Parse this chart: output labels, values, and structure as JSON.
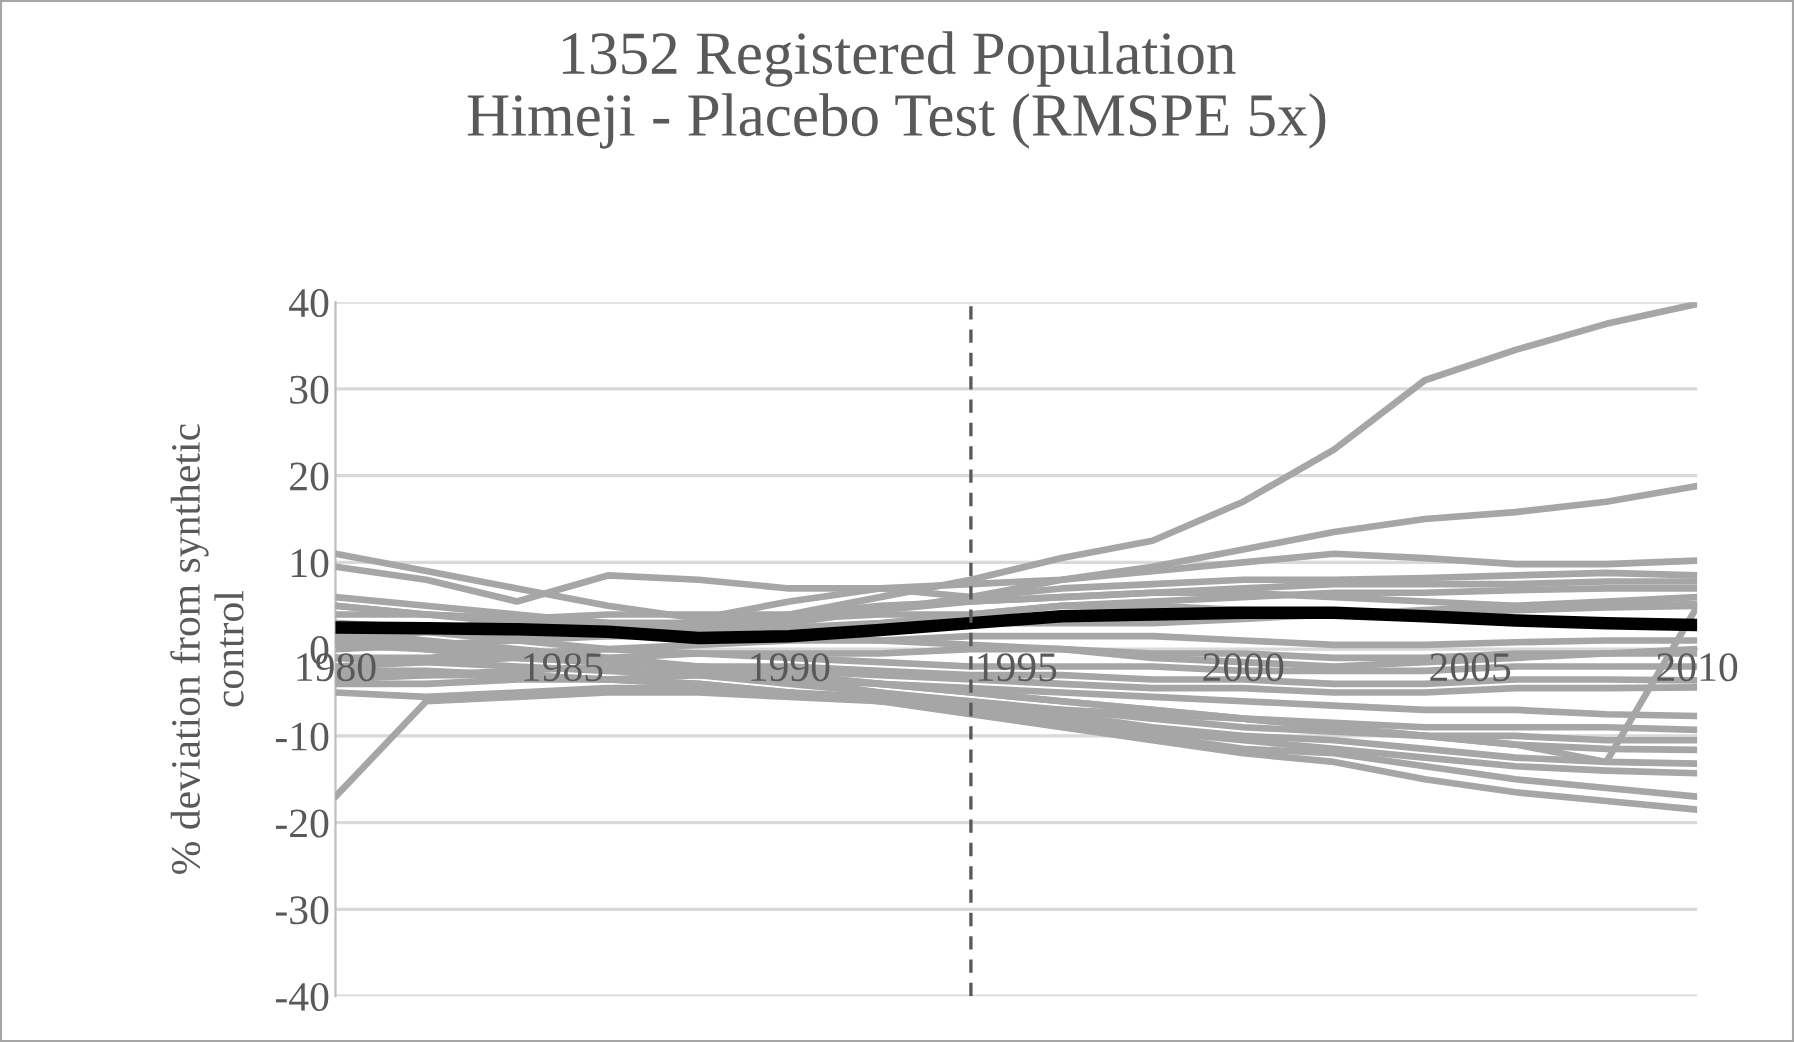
{
  "chart_data": {
    "type": "line",
    "title": "1352 Registered Population\nHimeji - Placebo Test (RMSPE 5x)",
    "ylabel": "% deviation from synthetic\ncontrol",
    "x": [
      1980,
      1982,
      1984,
      1986,
      1988,
      1990,
      1992,
      1994,
      1996,
      1998,
      2000,
      2002,
      2004,
      2006,
      2008,
      2010
    ],
    "xlim": [
      1980,
      2010
    ],
    "xticks": [
      1980,
      1985,
      1990,
      1995,
      2000,
      2005,
      2010
    ],
    "ylim": [
      -40,
      40
    ],
    "yticks": [
      -40,
      -30,
      -20,
      -10,
      0,
      10,
      20,
      30,
      40
    ],
    "grid": "y",
    "legend": false,
    "marker": "none",
    "line_style": "solid",
    "ref_lines": [
      {
        "axis": "x",
        "value": 1994,
        "label": null,
        "color": "#595959",
        "line_style": "dashed"
      }
    ],
    "series": [
      {
        "color": "#a6a6a6",
        "values": [
          5,
          4,
          3.5,
          3,
          2.5,
          4,
          6,
          8,
          10.5,
          12.5,
          17,
          23,
          31,
          34.5,
          37.5,
          39.8
        ]
      },
      {
        "color": "#a6a6a6",
        "values": [
          3,
          2.5,
          2,
          2,
          2,
          3,
          4.5,
          6,
          8,
          9.5,
          11.5,
          13.5,
          15,
          15.8,
          17,
          18.8
        ]
      },
      {
        "color": "#a6a6a6",
        "values": [
          11,
          9,
          7,
          5,
          3.5,
          5.5,
          7,
          7.5,
          8,
          9,
          10,
          11,
          10.5,
          9.8,
          9.8,
          10.2
        ]
      },
      {
        "color": "#a6a6a6",
        "values": [
          9.5,
          8,
          5.5,
          8.5,
          8,
          7,
          7,
          6,
          7,
          7.5,
          8,
          8,
          8.2,
          8.5,
          8.8,
          8.5
        ]
      },
      {
        "color": "#a6a6a6",
        "values": [
          6,
          5,
          4,
          3,
          3,
          4,
          5,
          5.5,
          6,
          6.5,
          7,
          7.5,
          7.5,
          7.5,
          7.8,
          7.8
        ]
      },
      {
        "color": "#a6a6a6",
        "values": [
          4,
          4,
          3.5,
          3,
          3,
          3.5,
          4,
          4,
          5,
          5.5,
          6,
          6.5,
          6.5,
          6.8,
          7,
          7
        ]
      },
      {
        "color": "#a6a6a6",
        "values": [
          2,
          2,
          1.5,
          1.5,
          2,
          2.5,
          3,
          4,
          5,
          5,
          4.5,
          4,
          4.5,
          5,
          5.5,
          6
        ]
      },
      {
        "color": "#a6a6a6",
        "values": [
          0,
          0.5,
          1,
          1.5,
          1.5,
          2,
          2.5,
          3,
          3,
          3,
          3.5,
          4,
          4,
          4.5,
          4.8,
          5
        ]
      },
      {
        "color": "#a6a6a6",
        "values": [
          1,
          0,
          -1,
          -1.5,
          -2,
          -3,
          -4,
          -5,
          -6,
          -7,
          -8,
          -9,
          -10,
          -11,
          -13,
          4.9
        ]
      },
      {
        "color": "#a6a6a6",
        "values": [
          -1,
          -1,
          -0.5,
          0,
          0.5,
          1,
          1,
          1.5,
          1.5,
          1.5,
          1,
          0.5,
          0.5,
          0.8,
          1,
          1
        ]
      },
      {
        "color": "#a6a6a6",
        "values": [
          -2,
          -1.5,
          -1,
          -1,
          -0.5,
          -0.5,
          -0.5,
          0,
          0,
          -0.5,
          -0.5,
          -1,
          -1,
          -0.5,
          -0.5,
          -0.5
        ]
      },
      {
        "color": "#a6a6a6",
        "values": [
          3,
          2,
          1,
          0,
          -0.5,
          -1,
          -1.5,
          -2,
          -2,
          -2,
          -2.5,
          -2.5,
          -2.5,
          -2,
          -2,
          -2
        ]
      },
      {
        "color": "#a6a6a6",
        "values": [
          -3,
          -3,
          -2.5,
          -2,
          -2,
          -2,
          -2.5,
          -3,
          -3,
          -3.5,
          -3.5,
          -4,
          -4,
          -3.5,
          -3.5,
          -3.6
        ]
      },
      {
        "color": "#a6a6a6",
        "values": [
          0.5,
          0,
          -1,
          -1.5,
          -2,
          -2.5,
          -3,
          -3.5,
          -4,
          -4.5,
          -4.5,
          -5,
          -5,
          -4.5,
          -4.5,
          -4.4
        ]
      },
      {
        "color": "#a6a6a6",
        "values": [
          -4,
          -4,
          -3.5,
          -3.5,
          -3,
          -3.5,
          -4,
          -4.5,
          -5,
          -5.5,
          -6,
          -6.5,
          -7,
          -7,
          -7.5,
          -7.7
        ]
      },
      {
        "color": "#a6a6a6",
        "values": [
          -5,
          -5.5,
          -5,
          -4.5,
          -4.5,
          -5,
          -5.5,
          -6,
          -7,
          -7.5,
          -8,
          -8.5,
          -9,
          -9,
          -9,
          -9.3
        ]
      },
      {
        "color": "#a6a6a6",
        "values": [
          -17,
          -6,
          -5.5,
          -5,
          -5,
          -5.5,
          -6,
          -6.5,
          -7,
          -8,
          -9,
          -9.5,
          -10,
          -10,
          -10.5,
          -10.5
        ]
      },
      {
        "color": "#a6a6a6",
        "values": [
          2,
          1,
          0,
          -1,
          -2,
          -3,
          -4,
          -5,
          -6,
          -7,
          -8,
          -9,
          -10,
          -11,
          -11.5,
          -11.6
        ]
      },
      {
        "color": "#a6a6a6",
        "values": [
          -1,
          -1.5,
          -2,
          -2.5,
          -3,
          -4,
          -5,
          -6,
          -7.5,
          -9,
          -10,
          -10.5,
          -11.5,
          -12.5,
          -13,
          -13.2
        ]
      },
      {
        "color": "#a6a6a6",
        "values": [
          1.5,
          0.5,
          -0.5,
          -1.5,
          -2.5,
          -3.5,
          -5,
          -6.5,
          -8,
          -9.5,
          -10.5,
          -11.5,
          -12.5,
          -13.5,
          -14,
          -14.3
        ]
      },
      {
        "color": "#a6a6a6",
        "values": [
          -3.5,
          -3,
          -3,
          -3.5,
          -4,
          -5,
          -6,
          -7,
          -8.5,
          -10,
          -11.5,
          -12,
          -13.5,
          -15,
          -16,
          -17
        ]
      },
      {
        "color": "#a6a6a6",
        "values": [
          -2.5,
          -2.5,
          -3,
          -3.5,
          -4,
          -5,
          -6,
          -7.5,
          -9,
          -10.5,
          -12,
          -13,
          -15,
          -16.5,
          -17.5,
          -18.5
        ]
      },
      {
        "color": "#a6a6a6",
        "values": [
          5,
          4,
          3,
          2.5,
          2,
          1.5,
          1,
          0.5,
          0,
          -1,
          -1.5,
          -2,
          -1.5,
          -1,
          -0.5,
          0
        ]
      },
      {
        "color": "#a6a6a6",
        "values": [
          1,
          2,
          3.5,
          4,
          4,
          4,
          4.5,
          5.5,
          6,
          6.5,
          6.5,
          6,
          5.5,
          5,
          5,
          5.2
        ]
      },
      {
        "color": "#000000",
        "values": [
          2.5,
          2.4,
          2.3,
          2.0,
          1.3,
          1.5,
          2.2,
          3,
          3.8,
          4,
          4.2,
          4.2,
          3.8,
          3.3,
          3,
          2.8
        ]
      }
    ]
  }
}
